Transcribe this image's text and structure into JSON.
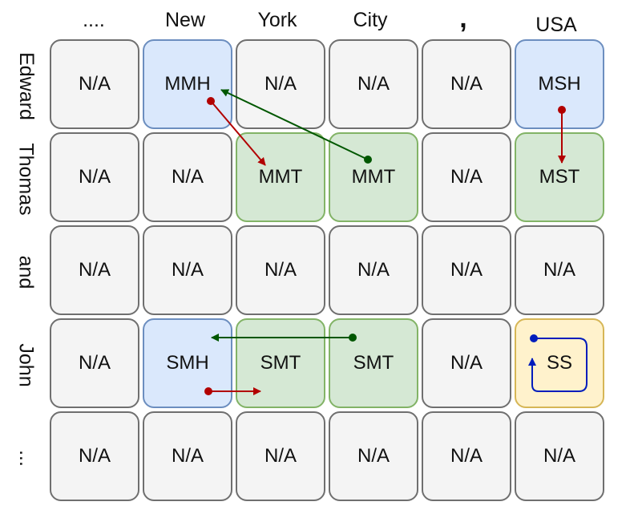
{
  "columns": [
    "....",
    "New",
    "York",
    "City",
    ",",
    "USA"
  ],
  "rows": [
    "Edward",
    "Thomas",
    "and",
    "John",
    "..."
  ],
  "cells": [
    [
      {
        "label": "N/A",
        "color": "gray"
      },
      {
        "label": "MMH",
        "color": "blue"
      },
      {
        "label": "N/A",
        "color": "gray"
      },
      {
        "label": "N/A",
        "color": "gray"
      },
      {
        "label": "N/A",
        "color": "gray"
      },
      {
        "label": "MSH",
        "color": "blue"
      }
    ],
    [
      {
        "label": "N/A",
        "color": "gray"
      },
      {
        "label": "N/A",
        "color": "gray"
      },
      {
        "label": "MMT",
        "color": "green"
      },
      {
        "label": "MMT",
        "color": "green"
      },
      {
        "label": "N/A",
        "color": "gray"
      },
      {
        "label": "MST",
        "color": "green"
      }
    ],
    [
      {
        "label": "N/A",
        "color": "gray"
      },
      {
        "label": "N/A",
        "color": "gray"
      },
      {
        "label": "N/A",
        "color": "gray"
      },
      {
        "label": "N/A",
        "color": "gray"
      },
      {
        "label": "N/A",
        "color": "gray"
      },
      {
        "label": "N/A",
        "color": "gray"
      }
    ],
    [
      {
        "label": "N/A",
        "color": "gray"
      },
      {
        "label": "SMH",
        "color": "blue"
      },
      {
        "label": "SMT",
        "color": "green"
      },
      {
        "label": "SMT",
        "color": "green"
      },
      {
        "label": "N/A",
        "color": "gray"
      },
      {
        "label": "SS",
        "color": "yellow"
      }
    ],
    [
      {
        "label": "N/A",
        "color": "gray"
      },
      {
        "label": "N/A",
        "color": "gray"
      },
      {
        "label": "N/A",
        "color": "gray"
      },
      {
        "label": "N/A",
        "color": "gray"
      },
      {
        "label": "N/A",
        "color": "gray"
      },
      {
        "label": "N/A",
        "color": "gray"
      }
    ]
  ],
  "arrow_colors": {
    "red": "#b20000",
    "green": "#005700",
    "blue": "#001dbc"
  }
}
